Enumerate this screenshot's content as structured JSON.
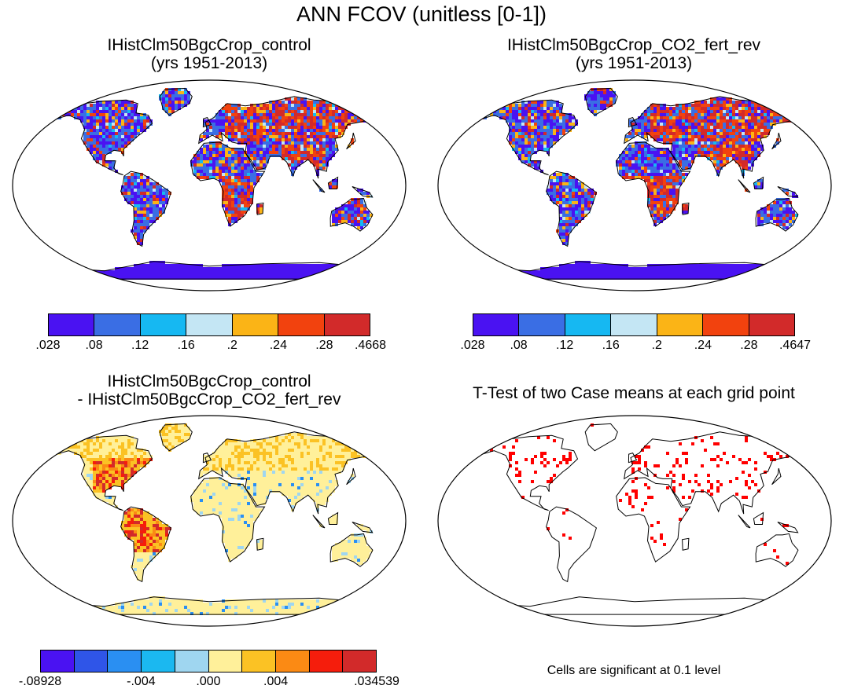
{
  "title": "ANN FCOV (unitless [0-1])",
  "panels": [
    {
      "id": "control",
      "title_line1": "IHistClm50BgcCrop_control",
      "title_line2": "(yrs 1951-2013)",
      "colorbar": {
        "colors": [
          "#4a12f2",
          "#3a6ee4",
          "#16b8f2",
          "#c4e6f4",
          "#fbb416",
          "#f2420e",
          "#d22a2a"
        ],
        "labels": [
          ".028",
          ".08",
          ".12",
          ".16",
          ".2",
          ".24",
          ".28",
          ".4668"
        ]
      }
    },
    {
      "id": "co2_fert_rev",
      "title_line1": "IHistClm50BgcCrop_CO2_fert_rev",
      "title_line2": "(yrs 1951-2013)",
      "colorbar": {
        "colors": [
          "#4a12f2",
          "#3a6ee4",
          "#16b8f2",
          "#c4e6f4",
          "#fbb416",
          "#f2420e",
          "#d22a2a"
        ],
        "labels": [
          ".028",
          ".08",
          ".12",
          ".16",
          ".2",
          ".24",
          ".28",
          ".4647"
        ]
      }
    },
    {
      "id": "difference",
      "title_line1": "IHistClm50BgcCrop_control",
      "title_line2": "- IHistClm50BgcCrop_CO2_fert_rev",
      "colorbar": {
        "colors": [
          "#4a12f2",
          "#2f55e8",
          "#2a8ff2",
          "#1bb8f0",
          "#9fd6f0",
          "#fff09a",
          "#fbc224",
          "#fb8a14",
          "#f51d0c",
          "#d22a2a"
        ],
        "labels": [
          "-.08928",
          "-.004",
          ".000",
          ".004",
          ".034539"
        ]
      }
    },
    {
      "id": "ttest",
      "title": "T-Test of two Case means at each grid point",
      "note": "Cells are significant at 0.1 level",
      "significance_color": "#ff0000"
    }
  ]
}
